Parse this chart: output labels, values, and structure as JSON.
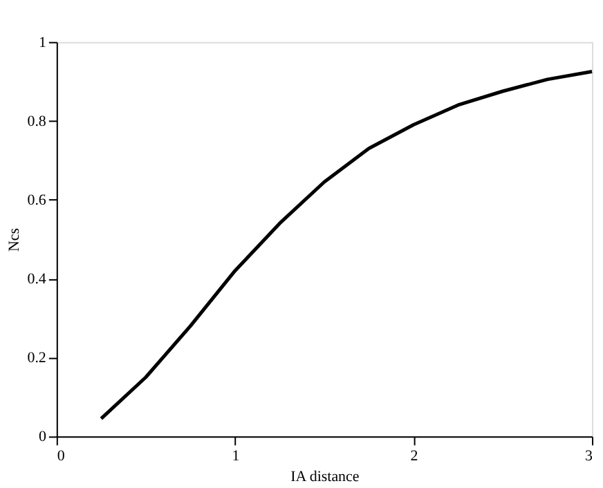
{
  "chart_data": {
    "type": "line",
    "xlabel": "IA distance",
    "ylabel": "Ncs",
    "x": [
      0.25,
      0.5,
      0.75,
      1.0,
      1.25,
      1.5,
      1.75,
      2.0,
      2.25,
      2.5,
      2.75,
      3.0
    ],
    "series": [
      {
        "color": "#000000",
        "values": [
          0.045,
          0.15,
          0.28,
          0.42,
          0.54,
          0.645,
          0.73,
          0.79,
          0.84,
          0.875,
          0.905,
          0.925
        ]
      }
    ],
    "xlim": [
      0,
      3
    ],
    "xticks": [
      0,
      1,
      2,
      3
    ],
    "ylim": [
      0,
      1
    ],
    "yticks": [
      0,
      0.2,
      0.4,
      0.6,
      0.8,
      1
    ],
    "grid": false,
    "marker": "none",
    "line_style": "solid"
  }
}
